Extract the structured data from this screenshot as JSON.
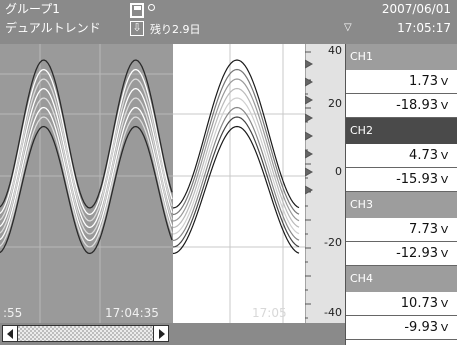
{
  "header": {
    "group": "グループ1",
    "trend_mode": "デュアルトレンド",
    "remaining": "残り2.9日",
    "date": "2007/06/01",
    "time": "17:05:17",
    "icons": [
      "save-icon",
      "status-dot-icon",
      "down-arrow-icon",
      "triangle-down-icon"
    ]
  },
  "trend": {
    "time_labels": {
      "left_start": ":55",
      "left_end": "17:04:35",
      "right_end": "17:05"
    }
  },
  "scale": {
    "labels": [
      "40",
      "20",
      "0",
      "-20",
      "-40"
    ]
  },
  "channels": [
    {
      "name": "CH1",
      "value1": "1.73ｖ",
      "value2": "-18.93ｖ",
      "selected": false
    },
    {
      "name": "CH2",
      "value1": "4.73ｖ",
      "value2": "-15.93ｖ",
      "selected": true
    },
    {
      "name": "CH3",
      "value1": "7.73ｖ",
      "value2": "-12.93ｖ",
      "selected": false
    },
    {
      "name": "CH4",
      "value1": "10.73ｖ",
      "value2": "-9.93ｖ",
      "selected": false
    }
  ],
  "colors": {
    "header_bg": "#8a8a8a",
    "left_trend_bg": "#9a9a9a",
    "right_trend_bg": "#ffffff",
    "channel_header": "#9d9d9d",
    "channel_header_selected": "#4a4a4a"
  }
}
